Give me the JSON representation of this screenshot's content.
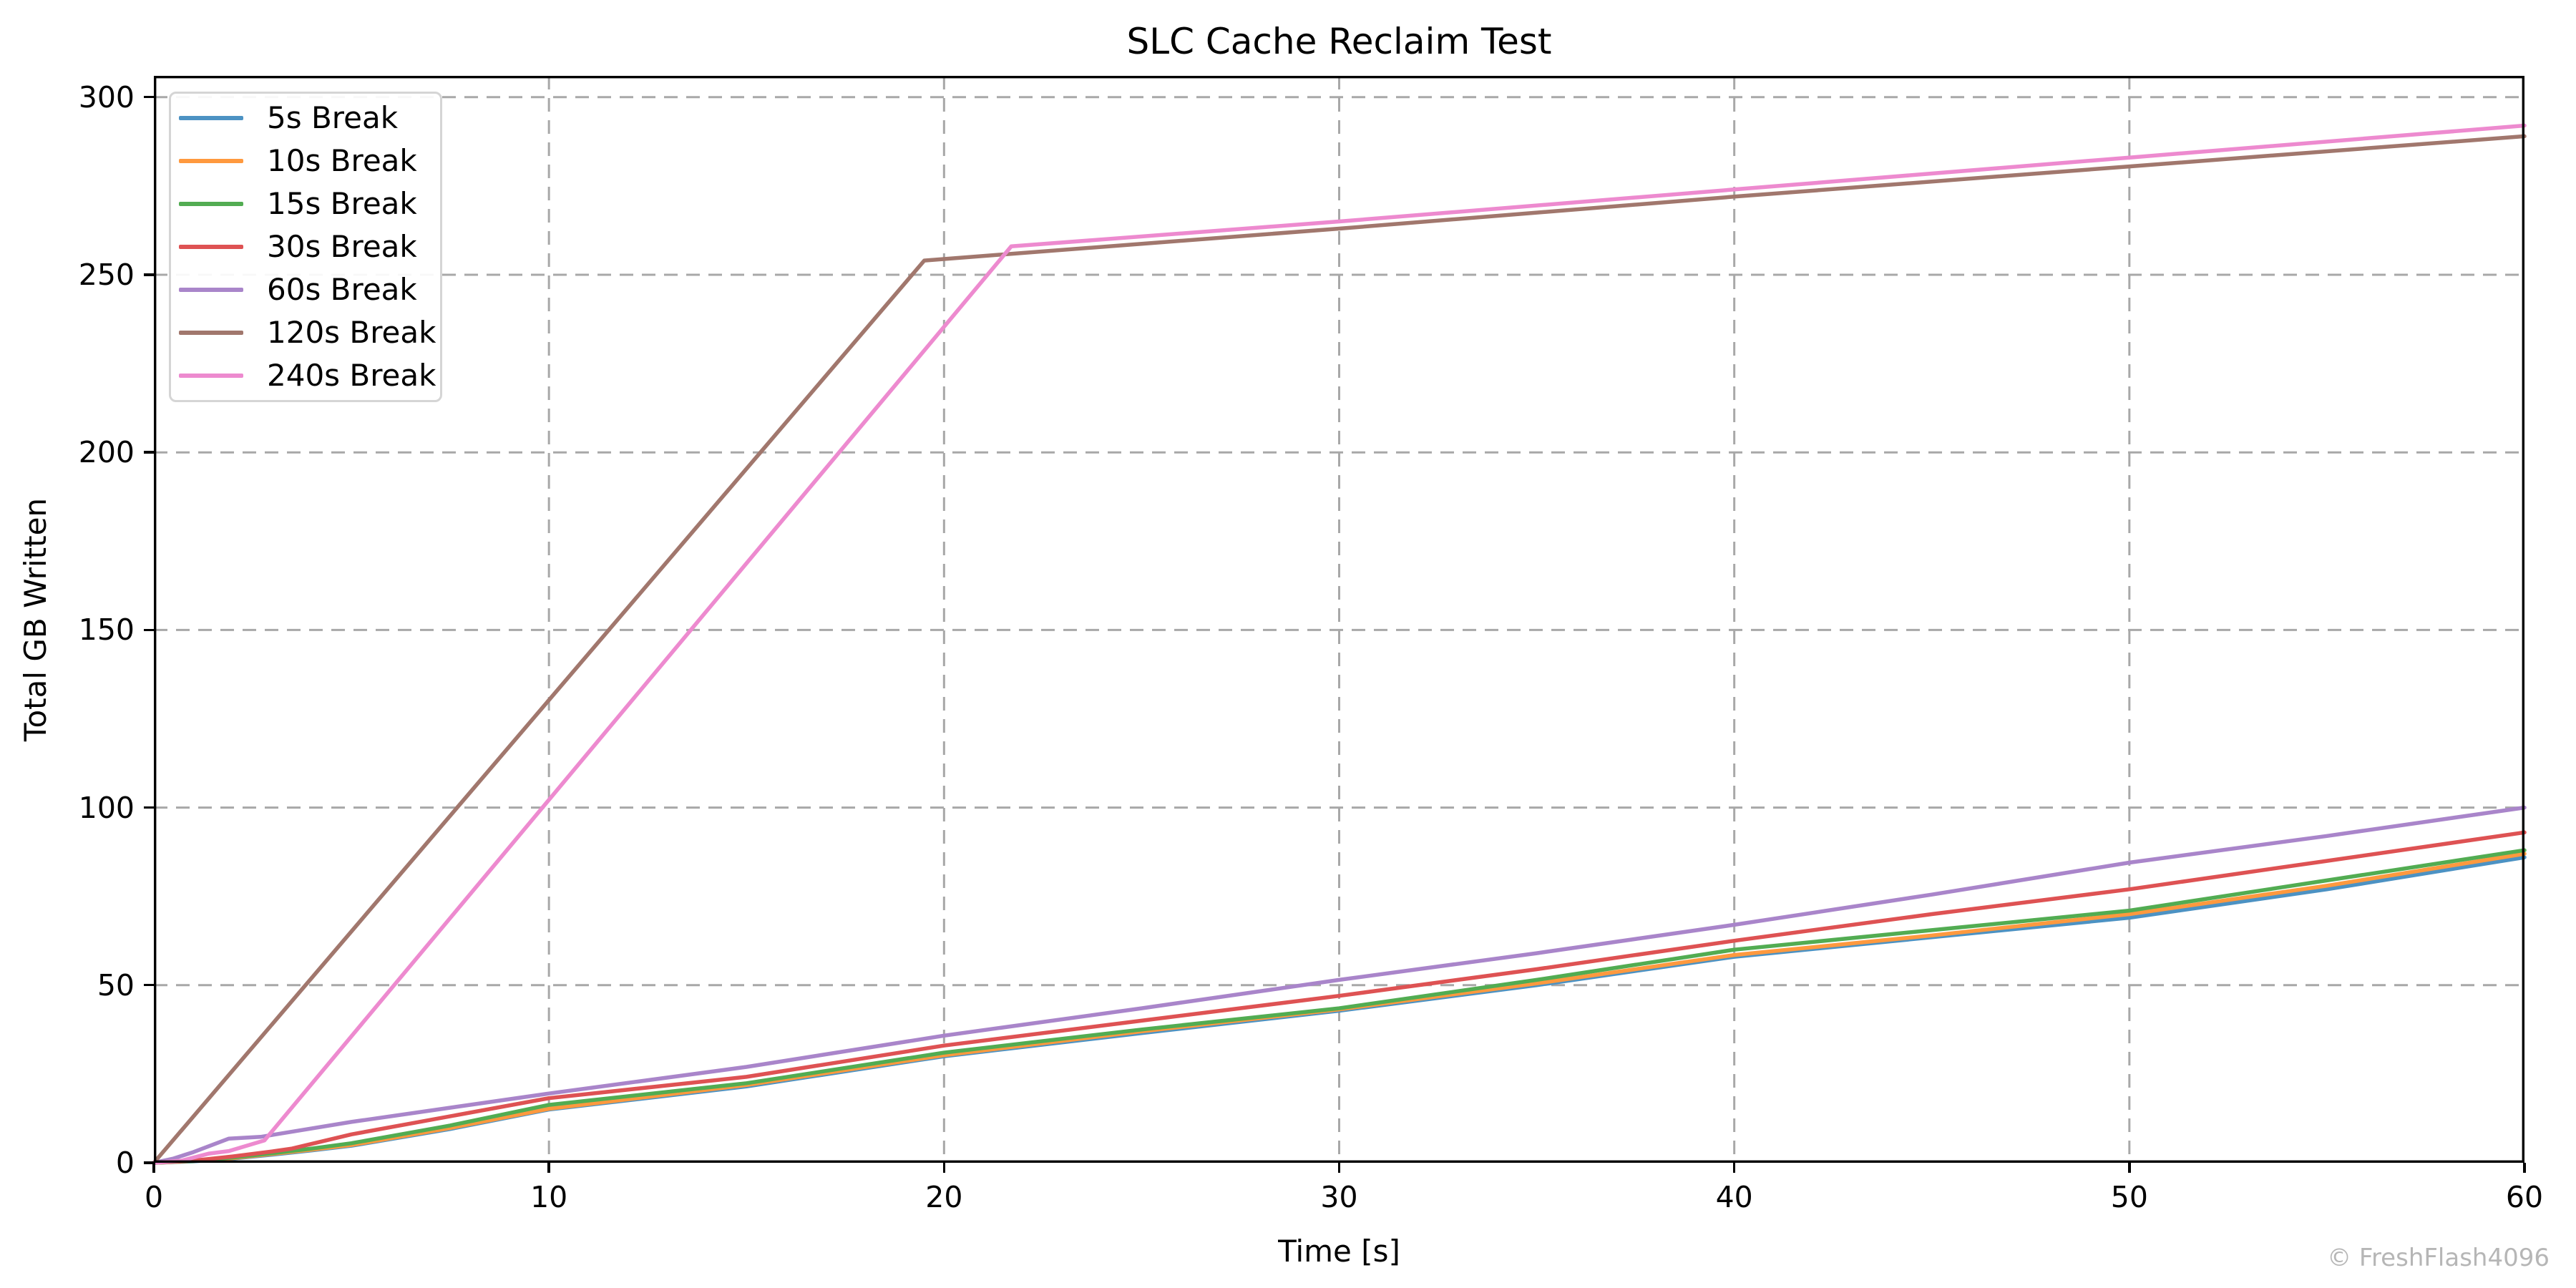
{
  "page": {
    "watermark": "© FreshFlash4096"
  },
  "colors": {
    "background": "#ffffff",
    "spine": "#000000",
    "grid": "#a8a8a8",
    "tick_label": "#000000",
    "legend_border": "#d5d5d5",
    "watermark": "#b6b6b6"
  },
  "chart_data": {
    "type": "line",
    "title": "SLC Cache Reclaim Test",
    "xlabel": "Time [s]",
    "ylabel": "Total GB Written",
    "xlim": [
      0,
      60
    ],
    "ylim": [
      0,
      306
    ],
    "xticks": [
      0,
      10,
      20,
      30,
      40,
      50,
      60
    ],
    "yticks": [
      0,
      50,
      100,
      150,
      200,
      250,
      300
    ],
    "grid": true,
    "grid_style": "dashed",
    "legend_position": "upper-left",
    "series": [
      {
        "name": "5s Break",
        "color": "#4C92C3",
        "points": [
          [
            0,
            0
          ],
          [
            1,
            0.4
          ],
          [
            2,
            1.2
          ],
          [
            3,
            2.3
          ],
          [
            4,
            3.5
          ],
          [
            5,
            4.8
          ],
          [
            7.5,
            9.5
          ],
          [
            10,
            15
          ],
          [
            15,
            21.5
          ],
          [
            20,
            30
          ],
          [
            25,
            36.5
          ],
          [
            30,
            42.8
          ],
          [
            35,
            50
          ],
          [
            40,
            58
          ],
          [
            45,
            63.5
          ],
          [
            50,
            69
          ],
          [
            55,
            77
          ],
          [
            60,
            86
          ]
        ]
      },
      {
        "name": "10s Break",
        "color": "#FF993E",
        "points": [
          [
            0,
            0
          ],
          [
            1,
            0.5
          ],
          [
            2,
            1.3
          ],
          [
            3,
            2.5
          ],
          [
            4,
            3.7
          ],
          [
            5,
            5
          ],
          [
            7.5,
            9.8
          ],
          [
            10,
            15.2
          ],
          [
            15,
            21.9
          ],
          [
            20,
            30.3
          ],
          [
            25,
            37
          ],
          [
            30,
            43.2
          ],
          [
            35,
            50.5
          ],
          [
            40,
            58.5
          ],
          [
            45,
            64
          ],
          [
            50,
            70
          ],
          [
            55,
            78
          ],
          [
            60,
            87
          ]
        ]
      },
      {
        "name": "15s Break",
        "color": "#52AC52",
        "points": [
          [
            0,
            0
          ],
          [
            1,
            0.5
          ],
          [
            2,
            1.5
          ],
          [
            3,
            2.7
          ],
          [
            4,
            4
          ],
          [
            5,
            5.5
          ],
          [
            7.5,
            10.5
          ],
          [
            10,
            16.3
          ],
          [
            15,
            22.4
          ],
          [
            20,
            31
          ],
          [
            25,
            37.5
          ],
          [
            30,
            43.5
          ],
          [
            35,
            51.5
          ],
          [
            40,
            60
          ],
          [
            45,
            65.5
          ],
          [
            50,
            71
          ],
          [
            55,
            79.5
          ],
          [
            60,
            88
          ]
        ]
      },
      {
        "name": "30s Break",
        "color": "#DE5253",
        "points": [
          [
            0,
            0
          ],
          [
            1,
            0.6
          ],
          [
            2,
            1.8
          ],
          [
            3,
            3.2
          ],
          [
            3.5,
            4
          ],
          [
            5,
            8
          ],
          [
            10,
            18.2
          ],
          [
            15,
            24.2
          ],
          [
            20,
            33
          ],
          [
            25,
            40
          ],
          [
            30,
            47
          ],
          [
            35,
            54.5
          ],
          [
            40,
            62.5
          ],
          [
            45,
            70
          ],
          [
            50,
            77
          ],
          [
            55,
            85
          ],
          [
            60,
            93
          ]
        ]
      },
      {
        "name": "60s Break",
        "color": "#A985CA",
        "points": [
          [
            0,
            0
          ],
          [
            0.5,
            1.2
          ],
          [
            1,
            3
          ],
          [
            1.9,
            6.8
          ],
          [
            2.7,
            7.3
          ],
          [
            5,
            11.5
          ],
          [
            10,
            19.5
          ],
          [
            15,
            27
          ],
          [
            20,
            35.8
          ],
          [
            25,
            43.5
          ],
          [
            30,
            51.5
          ],
          [
            35,
            59
          ],
          [
            40,
            67
          ],
          [
            45,
            75.5
          ],
          [
            50,
            84.5
          ],
          [
            55,
            92
          ],
          [
            60,
            100
          ]
        ]
      },
      {
        "name": "120s Break",
        "color": "#A1776D",
        "points": [
          [
            0,
            0
          ],
          [
            19.5,
            254
          ],
          [
            30,
            263
          ],
          [
            40,
            272
          ],
          [
            50,
            280.5
          ],
          [
            60,
            289
          ]
        ]
      },
      {
        "name": "240s Break",
        "color": "#ED8ACF",
        "points": [
          [
            0,
            0
          ],
          [
            0.7,
            0.6
          ],
          [
            1.4,
            2.6
          ],
          [
            1.9,
            3.3
          ],
          [
            2.8,
            6.3
          ],
          [
            21.7,
            258
          ],
          [
            30,
            265
          ],
          [
            40,
            274
          ],
          [
            50,
            283
          ],
          [
            60,
            292
          ]
        ]
      }
    ]
  }
}
